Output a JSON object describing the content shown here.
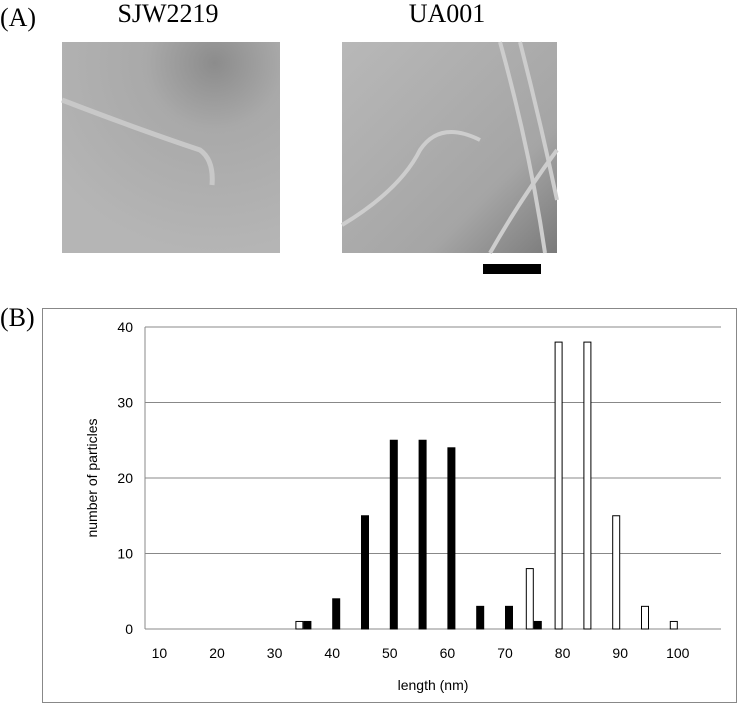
{
  "panel_a": {
    "label": "(A)",
    "images": [
      {
        "title": "SJW2219"
      },
      {
        "title": "UA001"
      }
    ]
  },
  "panel_b": {
    "label": "(B)"
  },
  "chart_data": {
    "type": "bar",
    "x_label": "length (nm)",
    "y_label": "number of particles",
    "categories": [
      10,
      null,
      20,
      null,
      30,
      null,
      40,
      null,
      50,
      null,
      60,
      null,
      70,
      null,
      80,
      null,
      90,
      null,
      100,
      null
    ],
    "series": [
      {
        "color": "#ffffff",
        "values": [
          0,
          0,
          0,
          0,
          0,
          1,
          0,
          0,
          0,
          0,
          0,
          0,
          0,
          8,
          38,
          38,
          15,
          3,
          1,
          0
        ]
      },
      {
        "color": "#000000",
        "values": [
          0,
          0,
          0,
          0,
          0,
          1,
          4,
          15,
          25,
          25,
          24,
          3,
          3,
          1,
          0,
          0,
          0,
          0,
          0,
          0
        ]
      }
    ],
    "ylim": [
      0,
      40
    ],
    "yticks": [
      0,
      10,
      20,
      30,
      40
    ],
    "grid": true
  }
}
